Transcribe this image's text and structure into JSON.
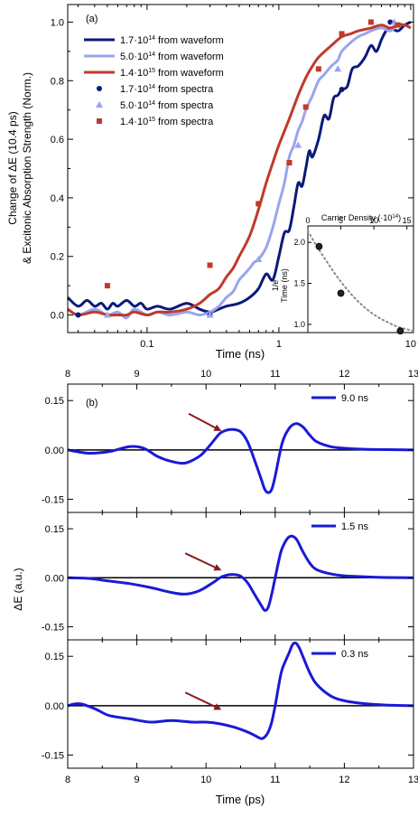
{
  "colors": {
    "navy": "#0a1a78",
    "light_blue": "#9aa4ee",
    "red": "#c0392b",
    "blue": "#1a1ad6",
    "arrow": "#8b1a1a",
    "inset_curve": "#888888",
    "black": "#000000"
  },
  "chart_data": [
    {
      "id": "a",
      "type": "line",
      "panel_label": "(a)",
      "xlabel": "Time (ns)",
      "ylabel_line1": "Change of ΔE (10.4 ps)",
      "ylabel_line2": "& Excitonic Absorption Strength (Norm.)",
      "x_scale": "log",
      "xlim": [
        0.025,
        10.5
      ],
      "ylim": [
        -0.06,
        1.06
      ],
      "x_ticks": [
        0.1,
        1,
        10
      ],
      "x_tick_labels": [
        "0.1",
        "1",
        "10"
      ],
      "y_ticks": [
        0.0,
        0.2,
        0.4,
        0.6,
        0.8,
        1.0
      ],
      "y_tick_labels": [
        "0.0",
        "0.2",
        "0.4",
        "0.6",
        "0.8",
        "1.0"
      ],
      "legend_position": "top-left",
      "legend": [
        {
          "label_main": "1.7·10",
          "label_exp": "14",
          "label_suffix": " from waveform",
          "kind": "line",
          "color_key": "navy"
        },
        {
          "label_main": "5.0·10",
          "label_exp": "14",
          "label_suffix": " from waveform",
          "kind": "line",
          "color_key": "light_blue"
        },
        {
          "label_main": "1.4·10",
          "label_exp": "15",
          "label_suffix": " from waveform",
          "kind": "line",
          "color_key": "red"
        },
        {
          "label_main": "1.7·10",
          "label_exp": "14",
          "label_suffix": " from spectra",
          "kind": "circle",
          "color_key": "navy"
        },
        {
          "label_main": "5.0·10",
          "label_exp": "14",
          "label_suffix": " from spectra",
          "kind": "triangle",
          "color_key": "light_blue"
        },
        {
          "label_main": "1.4·10",
          "label_exp": "15",
          "label_suffix": " from spectra",
          "kind": "square",
          "color_key": "red"
        }
      ],
      "series": [
        {
          "legend_index": 0,
          "kind": "line",
          "color_key": "navy",
          "x": [
            0.025,
            0.03,
            0.035,
            0.04,
            0.045,
            0.05,
            0.055,
            0.06,
            0.07,
            0.08,
            0.09,
            0.1,
            0.12,
            0.15,
            0.2,
            0.25,
            0.3,
            0.35,
            0.4,
            0.5,
            0.6,
            0.7,
            0.8,
            0.9,
            1.0,
            1.1,
            1.2,
            1.3,
            1.4,
            1.5,
            1.6,
            1.7,
            1.8,
            2.0,
            2.2,
            2.4,
            2.6,
            2.8,
            3.0,
            3.3,
            3.6,
            4.0,
            4.5,
            5.0,
            5.5,
            6.0,
            6.5,
            7.0,
            8.0,
            9.0,
            10.0
          ],
          "y": [
            0.06,
            0.03,
            0.05,
            0.03,
            0.04,
            0.02,
            0.04,
            0.03,
            0.05,
            0.03,
            0.04,
            0.02,
            0.03,
            0.02,
            0.04,
            0.02,
            0.01,
            0.02,
            0.03,
            0.04,
            0.06,
            0.09,
            0.14,
            0.12,
            0.2,
            0.28,
            0.29,
            0.37,
            0.45,
            0.44,
            0.5,
            0.56,
            0.54,
            0.6,
            0.68,
            0.67,
            0.74,
            0.75,
            0.77,
            0.78,
            0.84,
            0.85,
            0.88,
            0.92,
            0.9,
            0.94,
            0.97,
            0.98,
            0.97,
            0.99,
            1.0
          ]
        },
        {
          "legend_index": 1,
          "kind": "line",
          "color_key": "light_blue",
          "x": [
            0.025,
            0.03,
            0.04,
            0.05,
            0.06,
            0.07,
            0.08,
            0.1,
            0.12,
            0.15,
            0.2,
            0.25,
            0.3,
            0.35,
            0.4,
            0.45,
            0.5,
            0.55,
            0.6,
            0.65,
            0.7,
            0.8,
            0.9,
            1.0,
            1.1,
            1.2,
            1.3,
            1.4,
            1.5,
            1.6,
            1.8,
            2.0,
            2.2,
            2.5,
            2.8,
            3.0,
            3.5,
            4.0,
            4.5,
            5.0,
            6.0,
            7.0,
            8.0,
            9.0,
            10.0
          ],
          "y": [
            0.02,
            0.0,
            0.02,
            0.0,
            0.01,
            -0.01,
            0.02,
            0.0,
            0.01,
            0.0,
            0.01,
            0.0,
            0.01,
            0.03,
            0.06,
            0.08,
            0.12,
            0.14,
            0.16,
            0.18,
            0.19,
            0.23,
            0.3,
            0.38,
            0.45,
            0.54,
            0.58,
            0.63,
            0.66,
            0.7,
            0.75,
            0.8,
            0.82,
            0.85,
            0.87,
            0.9,
            0.93,
            0.95,
            0.96,
            0.97,
            0.98,
            0.97,
            0.99,
            0.99,
            0.98
          ]
        },
        {
          "legend_index": 2,
          "kind": "line",
          "color_key": "red",
          "x": [
            0.025,
            0.03,
            0.04,
            0.05,
            0.06,
            0.07,
            0.08,
            0.1,
            0.12,
            0.15,
            0.2,
            0.25,
            0.3,
            0.35,
            0.4,
            0.45,
            0.5,
            0.6,
            0.7,
            0.8,
            0.9,
            1.0,
            1.2,
            1.4,
            1.6,
            1.8,
            2.0,
            2.5,
            3.0,
            3.5,
            4.0,
            5.0,
            6.0,
            7.0,
            8.0,
            9.0,
            10.0
          ],
          "y": [
            0.02,
            0.0,
            0.01,
            0.0,
            0.0,
            0.0,
            0.01,
            0.0,
            0.01,
            0.01,
            0.02,
            0.04,
            0.07,
            0.09,
            0.13,
            0.16,
            0.2,
            0.27,
            0.36,
            0.45,
            0.52,
            0.58,
            0.67,
            0.75,
            0.81,
            0.85,
            0.88,
            0.92,
            0.95,
            0.96,
            0.97,
            0.98,
            0.99,
            0.98,
            0.99,
            0.99,
            0.98
          ]
        },
        {
          "legend_index": 3,
          "kind": "circle",
          "color_key": "navy",
          "x": [
            0.03,
            0.3,
            3.0,
            7.0
          ],
          "y": [
            0.0,
            0.0,
            0.77,
            1.0
          ]
        },
        {
          "legend_index": 4,
          "kind": "triangle",
          "color_key": "light_blue",
          "x": [
            0.05,
            0.3,
            0.7,
            1.4,
            2.8,
            7.5
          ],
          "y": [
            0.0,
            0.0,
            0.19,
            0.58,
            0.84,
            1.0
          ]
        },
        {
          "legend_index": 5,
          "kind": "square",
          "color_key": "red",
          "x": [
            0.05,
            0.3,
            0.7,
            1.2,
            1.6,
            2.0,
            3.0,
            5.0,
            8.0
          ],
          "y": [
            0.1,
            0.17,
            0.38,
            0.52,
            0.71,
            0.84,
            0.96,
            1.0,
            0.99
          ]
        }
      ],
      "inset": {
        "xlabel_main": "Carrier Density (·10",
        "xlabel_exp": "14",
        "xlabel_suffix": ")",
        "ylabel_line1": "1/e",
        "ylabel_line2": "Time (ns)",
        "xlim": [
          0,
          16
        ],
        "ylim": [
          0.9,
          2.2
        ],
        "x_ticks": [
          0,
          5,
          10,
          15
        ],
        "x_tick_labels": [
          "0",
          "5",
          "10",
          "15"
        ],
        "y_ticks": [
          1.0,
          1.5,
          2.0
        ],
        "y_tick_labels": [
          "1.0",
          "1.5",
          "2.0"
        ],
        "points_x": [
          1.7,
          5.0,
          14.0
        ],
        "points_y": [
          1.95,
          1.38,
          0.92
        ],
        "fit_x": [
          0.0,
          1.0,
          2.0,
          3.0,
          4.0,
          5.0,
          6.0,
          7.0,
          8.0,
          9.0,
          10.0,
          11.0,
          12.0,
          13.0,
          14.0,
          15.0,
          16.0
        ],
        "fit_y": [
          2.14,
          2.0,
          1.87,
          1.75,
          1.63,
          1.52,
          1.42,
          1.33,
          1.25,
          1.18,
          1.12,
          1.07,
          1.03,
          0.99,
          0.96,
          0.94,
          0.92
        ]
      }
    },
    {
      "id": "b",
      "type": "line",
      "panel_label": "(b)",
      "xlabel": "Time (ps)",
      "ylabel": "ΔE (a.u.)",
      "xlim": [
        8,
        13
      ],
      "ylim": [
        -0.19,
        0.2
      ],
      "x_ticks": [
        8,
        9,
        10,
        11,
        12,
        13
      ],
      "x_tick_labels": [
        "8",
        "9",
        "10",
        "11",
        "12",
        "13"
      ],
      "y_ticks": [
        -0.15,
        0.0,
        0.15
      ],
      "y_tick_labels": [
        "-0.15",
        "0.00",
        "0.15"
      ],
      "shared_x_axis_top": true,
      "legend_position": "top-right",
      "series": [
        {
          "name": "9.0 ns",
          "color_key": "blue",
          "x": [
            8.0,
            8.3,
            8.6,
            8.9,
            9.1,
            9.3,
            9.5,
            9.7,
            9.9,
            10.0,
            10.1,
            10.2,
            10.3,
            10.4,
            10.5,
            10.6,
            10.7,
            10.8,
            10.85,
            10.9,
            10.95,
            11.0,
            11.1,
            11.2,
            11.3,
            11.4,
            11.5,
            11.6,
            11.8,
            12.0,
            12.3,
            12.6,
            13.0
          ],
          "y": [
            0.0,
            -0.01,
            -0.005,
            0.01,
            0.005,
            -0.02,
            -0.035,
            -0.04,
            -0.02,
            0.0,
            0.025,
            0.05,
            0.06,
            0.062,
            0.055,
            0.025,
            -0.03,
            -0.09,
            -0.12,
            -0.13,
            -0.12,
            -0.08,
            0.02,
            0.065,
            0.08,
            0.07,
            0.045,
            0.025,
            0.01,
            0.005,
            0.002,
            0.001,
            0.0
          ]
        },
        {
          "name": "1.5 ns",
          "color_key": "blue",
          "x": [
            8.0,
            8.3,
            8.6,
            8.9,
            9.2,
            9.5,
            9.7,
            9.9,
            10.1,
            10.2,
            10.3,
            10.4,
            10.5,
            10.6,
            10.7,
            10.8,
            10.85,
            10.9,
            10.95,
            11.0,
            11.05,
            11.1,
            11.2,
            11.3,
            11.4,
            11.5,
            11.6,
            11.8,
            12.0,
            12.3,
            12.6,
            13.0
          ],
          "y": [
            0.0,
            -0.002,
            -0.01,
            -0.018,
            -0.03,
            -0.045,
            -0.05,
            -0.04,
            -0.015,
            0.0,
            0.008,
            0.01,
            0.005,
            -0.015,
            -0.05,
            -0.085,
            -0.1,
            -0.09,
            -0.05,
            0.0,
            0.05,
            0.09,
            0.125,
            0.12,
            0.08,
            0.045,
            0.025,
            0.012,
            0.006,
            0.003,
            0.001,
            0.0
          ]
        },
        {
          "name": "0.3 ns",
          "color_key": "blue",
          "x": [
            8.0,
            8.1,
            8.2,
            8.4,
            8.6,
            8.9,
            9.2,
            9.5,
            9.8,
            10.0,
            10.2,
            10.4,
            10.6,
            10.7,
            10.8,
            10.85,
            10.9,
            10.95,
            11.0,
            11.05,
            11.1,
            11.2,
            11.25,
            11.3,
            11.35,
            11.4,
            11.5,
            11.6,
            11.8,
            12.0,
            12.3,
            12.6,
            13.0
          ],
          "y": [
            0.0,
            0.005,
            0.005,
            -0.01,
            -0.03,
            -0.04,
            -0.05,
            -0.045,
            -0.05,
            -0.05,
            -0.055,
            -0.065,
            -0.08,
            -0.09,
            -0.1,
            -0.095,
            -0.08,
            -0.05,
            0.0,
            0.06,
            0.11,
            0.16,
            0.185,
            0.19,
            0.175,
            0.15,
            0.1,
            0.065,
            0.03,
            0.015,
            0.006,
            0.002,
            0.0
          ]
        }
      ],
      "arrows": [
        {
          "subpanel": 0,
          "from_x": 9.75,
          "from_y": 0.11,
          "to_x": 10.2,
          "to_y": 0.06
        },
        {
          "subpanel": 1,
          "from_x": 9.7,
          "from_y": 0.075,
          "to_x": 10.2,
          "to_y": 0.025
        },
        {
          "subpanel": 2,
          "from_x": 9.7,
          "from_y": 0.04,
          "to_x": 10.2,
          "to_y": -0.01
        }
      ]
    }
  ]
}
